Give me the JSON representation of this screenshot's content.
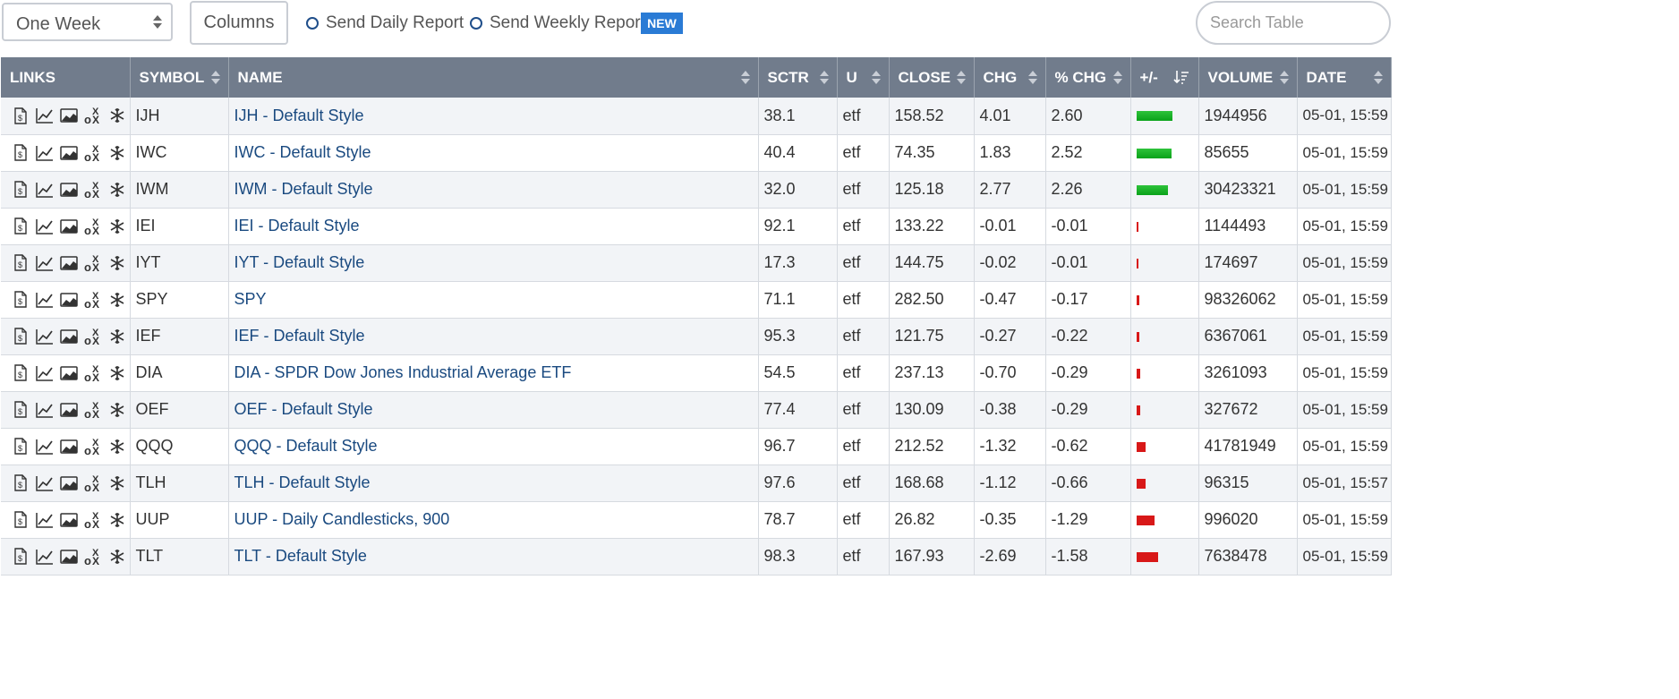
{
  "toolbar": {
    "period": "One Week",
    "columns_label": "Columns",
    "daily_report_label": "Send Daily Report",
    "weekly_report_label": "Send Weekly Report",
    "new_badge": "NEW",
    "search_placeholder": "Search Table"
  },
  "colors": {
    "header_bg": "#717c8c",
    "link": "#1a4a80",
    "positive_bar": "#19b027",
    "negative_bar": "#d81818",
    "badge": "#2a7bd5"
  },
  "table": {
    "headers": {
      "links": "LINKS",
      "symbol": "SYMBOL",
      "name": "NAME",
      "sctr": "SCTR",
      "u": "U",
      "close": "CLOSE",
      "chg": "CHG",
      "pct_chg": "% CHG",
      "plus_minus": "+/-",
      "volume": "VOLUME",
      "date": "DATE"
    },
    "link_icons": [
      "document-dollar-icon",
      "line-chart-icon",
      "area-chart-icon",
      "point-figure-icon",
      "snowflake-icon"
    ],
    "rows": [
      {
        "symbol": "IJH",
        "name": "IJH - Default Style",
        "sctr": "38.1",
        "u": "etf",
        "close": "158.52",
        "chg": "4.01",
        "pct": "2.60",
        "volume": "1944956",
        "date": "05-01, 15:59",
        "pct_value": 2.6
      },
      {
        "symbol": "IWC",
        "name": "IWC - Default Style",
        "sctr": "40.4",
        "u": "etf",
        "close": "74.35",
        "chg": "1.83",
        "pct": "2.52",
        "volume": "85655",
        "date": "05-01, 15:59",
        "pct_value": 2.52
      },
      {
        "symbol": "IWM",
        "name": "IWM - Default Style",
        "sctr": "32.0",
        "u": "etf",
        "close": "125.18",
        "chg": "2.77",
        "pct": "2.26",
        "volume": "30423321",
        "date": "05-01, 15:59",
        "pct_value": 2.26
      },
      {
        "symbol": "IEI",
        "name": "IEI - Default Style",
        "sctr": "92.1",
        "u": "etf",
        "close": "133.22",
        "chg": "-0.01",
        "pct": "-0.01",
        "volume": "1144493",
        "date": "05-01, 15:59",
        "pct_value": -0.01
      },
      {
        "symbol": "IYT",
        "name": "IYT - Default Style",
        "sctr": "17.3",
        "u": "etf",
        "close": "144.75",
        "chg": "-0.02",
        "pct": "-0.01",
        "volume": "174697",
        "date": "05-01, 15:59",
        "pct_value": -0.01
      },
      {
        "symbol": "SPY",
        "name": "SPY",
        "sctr": "71.1",
        "u": "etf",
        "close": "282.50",
        "chg": "-0.47",
        "pct": "-0.17",
        "volume": "98326062",
        "date": "05-01, 15:59",
        "pct_value": -0.17
      },
      {
        "symbol": "IEF",
        "name": "IEF - Default Style",
        "sctr": "95.3",
        "u": "etf",
        "close": "121.75",
        "chg": "-0.27",
        "pct": "-0.22",
        "volume": "6367061",
        "date": "05-01, 15:59",
        "pct_value": -0.22
      },
      {
        "symbol": "DIA",
        "name": "DIA - SPDR Dow Jones Industrial Average ETF",
        "sctr": "54.5",
        "u": "etf",
        "close": "237.13",
        "chg": "-0.70",
        "pct": "-0.29",
        "volume": "3261093",
        "date": "05-01, 15:59",
        "pct_value": -0.29
      },
      {
        "symbol": "OEF",
        "name": "OEF - Default Style",
        "sctr": "77.4",
        "u": "etf",
        "close": "130.09",
        "chg": "-0.38",
        "pct": "-0.29",
        "volume": "327672",
        "date": "05-01, 15:59",
        "pct_value": -0.29
      },
      {
        "symbol": "QQQ",
        "name": "QQQ - Default Style",
        "sctr": "96.7",
        "u": "etf",
        "close": "212.52",
        "chg": "-1.32",
        "pct": "-0.62",
        "volume": "41781949",
        "date": "05-01, 15:59",
        "pct_value": -0.62
      },
      {
        "symbol": "TLH",
        "name": "TLH - Default Style",
        "sctr": "97.6",
        "u": "etf",
        "close": "168.68",
        "chg": "-1.12",
        "pct": "-0.66",
        "volume": "96315",
        "date": "05-01, 15:57",
        "pct_value": -0.66
      },
      {
        "symbol": "UUP",
        "name": "UUP - Daily Candlesticks, 900",
        "sctr": "78.7",
        "u": "etf",
        "close": "26.82",
        "chg": "-0.35",
        "pct": "-1.29",
        "volume": "996020",
        "date": "05-01, 15:59",
        "pct_value": -1.29
      },
      {
        "symbol": "TLT",
        "name": "TLT - Default Style",
        "sctr": "98.3",
        "u": "etf",
        "close": "167.93",
        "chg": "-2.69",
        "pct": "-1.58",
        "volume": "7638478",
        "date": "05-01, 15:59",
        "pct_value": -1.58
      }
    ]
  }
}
